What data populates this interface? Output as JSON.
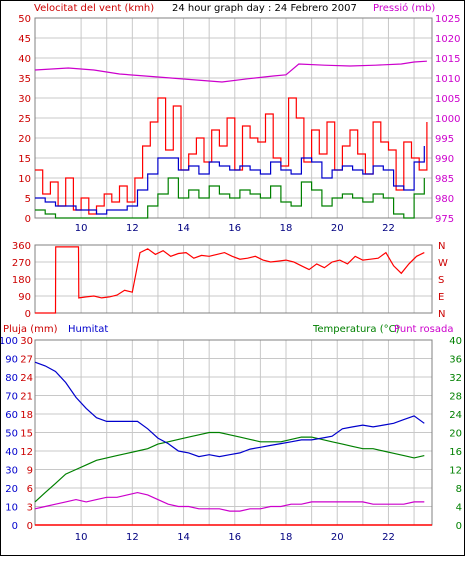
{
  "header": {
    "wind_label": "Velocitat del vent (kmh)",
    "title": "24 hour graph day : 24 Febrero 2007",
    "pressure_label": "Pressió (mb)"
  },
  "labels": {
    "rain": "Pluja (mm)",
    "humidity": "Humitat",
    "temperature": "Temperatura (°C)",
    "dewpoint": "Punt rosada",
    "dir_ticks": [
      "N",
      "W",
      "S",
      "E",
      "N"
    ]
  },
  "colors": {
    "wind": "#ff0000",
    "gust": "#ff0000",
    "avg_wind": "#0000cc",
    "low_wind": "#008000",
    "pressure": "#cc00cc",
    "direction": "#ff0000",
    "humidity": "#0000cc",
    "temperature": "#008000",
    "dewpoint": "#cc00cc",
    "rain": "#ff0000",
    "grid": "#c8c8c8"
  },
  "chart_data": [
    {
      "type": "line",
      "title": "24 hour graph day : 24 Febrero 2007",
      "x_unit": "hour of day",
      "xlim": [
        8.2,
        23.7
      ],
      "x_ticks": [
        10,
        12,
        14,
        16,
        18,
        20,
        22
      ],
      "ylabel": "Velocitat del vent (kmh)",
      "ylim": [
        0,
        50
      ],
      "y_ticks": [
        0,
        5,
        10,
        15,
        20,
        25,
        30,
        35,
        40,
        45,
        50
      ],
      "y2label": "Pressió (mb)",
      "y2lim": [
        975,
        1025
      ],
      "y2_ticks": [
        975,
        980,
        985,
        990,
        995,
        1000,
        1005,
        1010,
        1015,
        1020,
        1025
      ],
      "grid": true,
      "series": [
        {
          "name": "",
          "color": "#ff0000",
          "axis": "left",
          "x": [
            8.2,
            8.5,
            8.8,
            9.1,
            9.4,
            9.7,
            10.0,
            10.3,
            10.6,
            10.9,
            11.2,
            11.5,
            11.8,
            12.1,
            12.4,
            12.7,
            13.0,
            13.3,
            13.6,
            13.9,
            14.2,
            14.5,
            14.8,
            15.1,
            15.4,
            15.7,
            16.0,
            16.3,
            16.6,
            16.9,
            17.2,
            17.5,
            17.8,
            18.1,
            18.4,
            18.7,
            19.0,
            19.3,
            19.6,
            19.9,
            20.2,
            20.5,
            20.8,
            21.1,
            21.4,
            21.7,
            22.0,
            22.3,
            22.6,
            22.9,
            23.2,
            23.5
          ],
          "values": [
            12,
            6,
            9,
            3,
            10,
            2,
            5,
            1,
            3,
            6,
            4,
            8,
            4,
            10,
            18,
            24,
            30,
            17,
            28,
            12,
            16,
            20,
            14,
            22,
            18,
            25,
            12,
            23,
            20,
            19,
            26,
            15,
            13,
            30,
            25,
            14,
            22,
            16,
            24,
            12,
            18,
            22,
            16,
            11,
            24,
            19,
            17,
            7,
            19,
            15,
            12,
            24
          ]
        },
        {
          "name": "",
          "color": "#0000cc",
          "axis": "left",
          "x": [
            8.2,
            8.6,
            9.0,
            9.4,
            9.8,
            10.2,
            10.6,
            11.0,
            11.4,
            11.8,
            12.2,
            12.6,
            13.0,
            13.4,
            13.8,
            14.2,
            14.6,
            15.0,
            15.4,
            15.8,
            16.2,
            16.6,
            17.0,
            17.4,
            17.8,
            18.2,
            18.6,
            19.0,
            19.4,
            19.8,
            20.2,
            20.6,
            21.0,
            21.4,
            21.8,
            22.2,
            22.6,
            23.0,
            23.4
          ],
          "values": [
            5,
            4,
            3,
            3,
            2,
            2,
            1,
            2,
            2,
            3,
            7,
            11,
            15,
            15,
            12,
            13,
            11,
            14,
            13,
            12,
            13,
            12,
            11,
            14,
            12,
            11,
            15,
            14,
            10,
            12,
            13,
            12,
            11,
            13,
            12,
            8,
            7,
            14,
            18
          ]
        },
        {
          "name": "",
          "color": "#008000",
          "axis": "left",
          "x": [
            8.2,
            8.6,
            9.0,
            9.4,
            9.8,
            10.2,
            10.6,
            11.0,
            11.4,
            11.8,
            12.2,
            12.6,
            13.0,
            13.4,
            13.8,
            14.2,
            14.6,
            15.0,
            15.4,
            15.8,
            16.2,
            16.6,
            17.0,
            17.4,
            17.8,
            18.2,
            18.6,
            19.0,
            19.4,
            19.8,
            20.2,
            20.6,
            21.0,
            21.4,
            21.8,
            22.2,
            22.6,
            23.0,
            23.4
          ],
          "values": [
            2,
            1,
            0,
            0,
            0,
            0,
            0,
            0,
            0,
            0,
            0,
            3,
            6,
            10,
            5,
            7,
            5,
            8,
            6,
            5,
            7,
            6,
            5,
            8,
            4,
            3,
            9,
            7,
            3,
            5,
            6,
            5,
            4,
            6,
            5,
            1,
            0,
            6,
            10
          ]
        },
        {
          "name": "",
          "color": "#cc00cc",
          "axis": "right",
          "x": [
            8.2,
            9.5,
            10.5,
            11.5,
            12.5,
            13.5,
            14.5,
            15.5,
            16.5,
            17.5,
            18.0,
            18.5,
            19.5,
            20.5,
            21.5,
            22.5,
            23.0,
            23.5
          ],
          "values": [
            1012,
            1012.5,
            1012,
            1011,
            1010.5,
            1010,
            1009.5,
            1009,
            1009.8,
            1010.5,
            1010.8,
            1013.5,
            1013.2,
            1013,
            1013.2,
            1013.5,
            1014,
            1014.2
          ]
        }
      ]
    },
    {
      "type": "line",
      "x_unit": "hour of day",
      "xlim": [
        8.2,
        23.7
      ],
      "ylim": [
        0,
        360
      ],
      "y_ticks": [
        0,
        90,
        180,
        270,
        360
      ],
      "y2_ticks": [
        "N",
        "E",
        "S",
        "W",
        "N"
      ],
      "grid": true,
      "series": [
        {
          "name": "",
          "color": "#ff0000",
          "x": [
            8.2,
            9.0,
            9.01,
            9.9,
            9.91,
            10.2,
            10.5,
            10.8,
            11.1,
            11.4,
            11.7,
            12.0,
            12.3,
            12.6,
            12.9,
            13.2,
            13.5,
            13.8,
            14.1,
            14.4,
            14.7,
            15.0,
            15.3,
            15.6,
            15.9,
            16.2,
            16.5,
            16.8,
            17.1,
            17.4,
            17.7,
            18.0,
            18.3,
            18.6,
            18.9,
            19.2,
            19.5,
            19.8,
            20.1,
            20.4,
            20.7,
            21.0,
            21.3,
            21.6,
            21.9,
            22.2,
            22.5,
            22.8,
            23.1,
            23.4
          ],
          "values": [
            0,
            0,
            350,
            350,
            80,
            85,
            90,
            80,
            85,
            95,
            120,
            110,
            320,
            340,
            310,
            330,
            300,
            315,
            320,
            290,
            305,
            300,
            310,
            320,
            300,
            285,
            290,
            300,
            280,
            270,
            275,
            280,
            270,
            250,
            230,
            260,
            240,
            270,
            280,
            260,
            300,
            280,
            285,
            290,
            320,
            250,
            210,
            260,
            300,
            320
          ]
        }
      ]
    },
    {
      "type": "line",
      "x_unit": "hour of day",
      "xlim": [
        8.2,
        23.7
      ],
      "x_ticks": [
        10,
        12,
        14,
        16,
        18,
        20,
        22
      ],
      "y_rain_lim": [
        0,
        30
      ],
      "y_rain_ticks": [
        0,
        3,
        6,
        9,
        12,
        15,
        18,
        21,
        24,
        27,
        30
      ],
      "y_humidity_lim": [
        0,
        100
      ],
      "y_humidity_ticks": [
        0,
        10,
        20,
        30,
        40,
        50,
        60,
        70,
        80,
        90,
        100
      ],
      "y_temp_lim": [
        0,
        40
      ],
      "y_temp_ticks": [
        0,
        4,
        8,
        12,
        16,
        20,
        24,
        28,
        32,
        36,
        40
      ],
      "grid": true,
      "series": [
        {
          "name": "Humitat",
          "color": "#0000cc",
          "axis": "humidity",
          "x": [
            8.2,
            8.6,
            9.0,
            9.4,
            9.8,
            10.2,
            10.6,
            11.0,
            11.4,
            11.8,
            12.2,
            12.6,
            13.0,
            13.4,
            13.8,
            14.2,
            14.6,
            15.0,
            15.4,
            15.8,
            16.2,
            16.6,
            17.0,
            17.4,
            17.8,
            18.2,
            18.6,
            19.0,
            19.4,
            19.8,
            20.2,
            20.6,
            21.0,
            21.4,
            21.8,
            22.2,
            22.6,
            23.0,
            23.4
          ],
          "values": [
            88,
            86,
            83,
            77,
            69,
            63,
            58,
            56,
            56,
            56,
            56,
            52,
            47,
            44,
            40,
            39,
            37,
            38,
            37,
            38,
            39,
            41,
            42,
            43,
            44,
            45,
            46,
            46,
            47,
            48,
            52,
            53,
            54,
            53,
            54,
            55,
            57,
            59,
            55
          ]
        },
        {
          "name": "Temperatura (°C)",
          "color": "#008000",
          "axis": "temp",
          "x": [
            8.2,
            8.6,
            9.0,
            9.4,
            9.8,
            10.2,
            10.6,
            11.0,
            11.4,
            11.8,
            12.2,
            12.6,
            13.0,
            13.4,
            13.8,
            14.2,
            14.6,
            15.0,
            15.4,
            15.8,
            16.2,
            16.6,
            17.0,
            17.4,
            17.8,
            18.2,
            18.6,
            19.0,
            19.4,
            19.8,
            20.2,
            20.6,
            21.0,
            21.4,
            21.8,
            22.2,
            22.6,
            23.0,
            23.4
          ],
          "values": [
            5,
            7,
            9,
            11,
            12,
            13,
            14,
            14.5,
            15,
            15.5,
            16,
            16.5,
            17.5,
            18,
            18.5,
            19,
            19.5,
            20,
            20,
            19.5,
            19,
            18.5,
            18,
            18,
            18,
            18.5,
            19,
            19,
            18.5,
            18,
            17.5,
            17,
            16.5,
            16.5,
            16,
            15.5,
            15,
            14.5,
            15
          ]
        },
        {
          "name": "Punt rosada",
          "color": "#cc00cc",
          "axis": "temp",
          "x": [
            8.2,
            8.6,
            9.0,
            9.4,
            9.8,
            10.2,
            10.6,
            11.0,
            11.4,
            11.8,
            12.2,
            12.6,
            13.0,
            13.4,
            13.8,
            14.2,
            14.6,
            15.0,
            15.4,
            15.8,
            16.2,
            16.6,
            17.0,
            17.4,
            17.8,
            18.2,
            18.6,
            19.0,
            19.4,
            19.8,
            20.2,
            20.6,
            21.0,
            21.4,
            21.8,
            22.2,
            22.6,
            23.0,
            23.4
          ],
          "values": [
            3.5,
            4,
            4.5,
            5,
            5.5,
            5,
            5.5,
            6,
            6,
            6.5,
            7,
            6.5,
            5.5,
            4.5,
            4,
            4,
            3.5,
            3.5,
            3.5,
            3,
            3,
            3.5,
            3.5,
            4,
            4,
            4.5,
            4.5,
            5,
            5,
            5,
            5,
            5,
            5,
            4.5,
            4.5,
            4.5,
            4.5,
            5,
            5
          ]
        },
        {
          "name": "Pluja (mm)",
          "color": "#ff0000",
          "axis": "rain",
          "x": [
            8.2,
            23.7
          ],
          "values": [
            0,
            0
          ]
        }
      ]
    }
  ]
}
